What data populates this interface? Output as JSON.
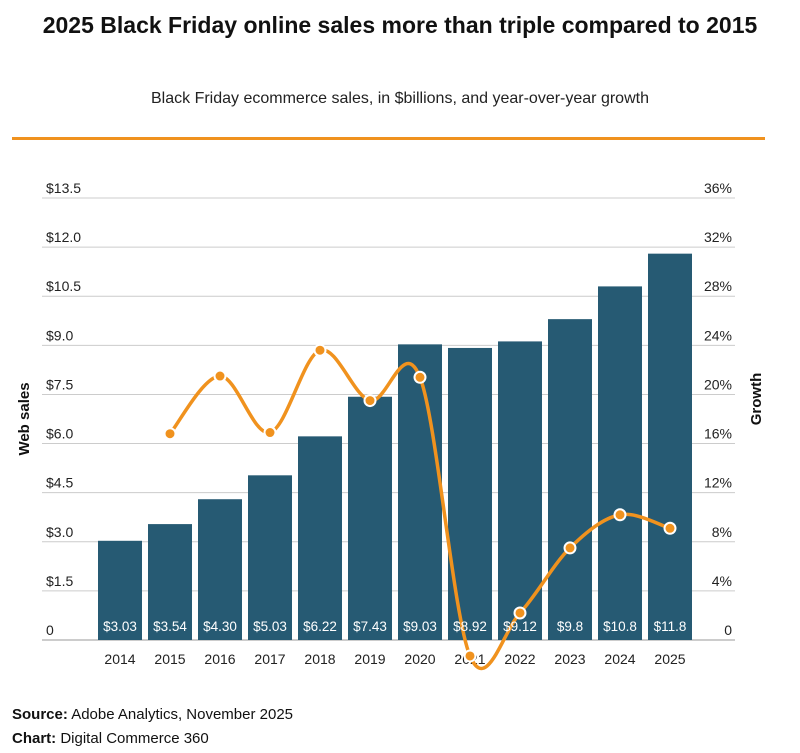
{
  "title": "2025 Black Friday online sales more than triple compared to 2015",
  "subtitle": "Black Friday ecommerce sales, in $billions, and year-over-year growth",
  "footer": {
    "source_label": "Source:",
    "source_text": "Adobe Analytics, November 2025",
    "chart_label": "Chart:",
    "chart_text": "Digital Commerce 360"
  },
  "colors": {
    "bar": "#265a73",
    "line": "#f0921e",
    "rule": "#f0921e",
    "grid": "#cccccc"
  },
  "chart_data": {
    "type": "bar",
    "categories": [
      "2014",
      "2015",
      "2016",
      "2017",
      "2018",
      "2019",
      "2020",
      "2021",
      "2022",
      "2023",
      "2024",
      "2025"
    ],
    "series": [
      {
        "name": "Web sales",
        "axis": "left",
        "type": "bar",
        "values": [
          3.03,
          3.54,
          4.3,
          5.03,
          6.22,
          7.43,
          9.03,
          8.92,
          9.12,
          9.8,
          10.8,
          11.8
        ],
        "labels": [
          "$3.03",
          "$3.54",
          "$4.30",
          "$5.03",
          "$6.22",
          "$7.43",
          "$9.03",
          "$8.92",
          "$9.12",
          "$9.8",
          "$10.8",
          "$11.8"
        ]
      },
      {
        "name": "Growth",
        "axis": "right",
        "type": "line",
        "values": [
          null,
          16.8,
          21.5,
          16.9,
          23.6,
          19.5,
          21.4,
          -1.3,
          2.2,
          7.5,
          10.2,
          9.1
        ]
      }
    ],
    "ylabel": "Web sales",
    "y2label": "Growth",
    "ylim": [
      0,
      13.5
    ],
    "y2lim": [
      0,
      36
    ],
    "yticks": [
      "0",
      "$1.5",
      "$3.0",
      "$4.5",
      "$6.0",
      "$7.5",
      "$9.0",
      "$10.5",
      "$12.0",
      "$13.5"
    ],
    "y2ticks": [
      "0",
      "4%",
      "8%",
      "12%",
      "16%",
      "20%",
      "24%",
      "28%",
      "32%",
      "36%"
    ],
    "grid": true
  }
}
